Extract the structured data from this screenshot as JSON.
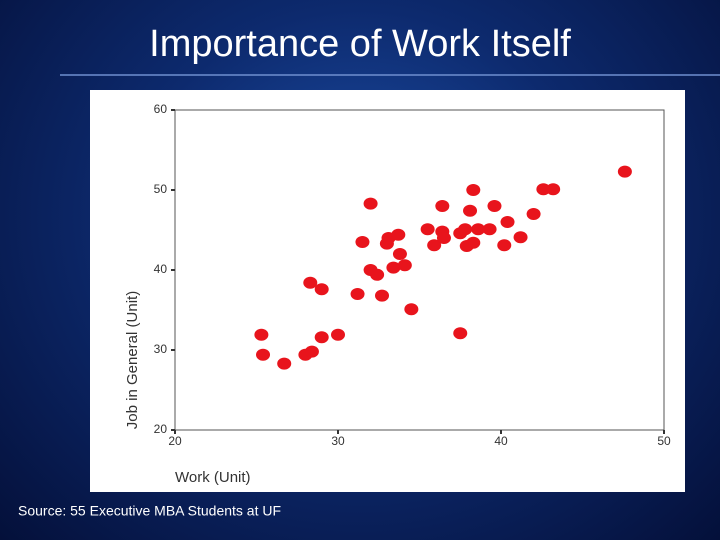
{
  "chart_data": {
    "type": "scatter",
    "title": "Importance of Work Itself",
    "x_label": "Work (Unit)",
    "y_label": "Job in General (Unit)",
    "source": "Source: 55 Executive MBA Students at UF",
    "color": "#e8141c",
    "xlim": [
      20,
      50
    ],
    "xticks": [
      20,
      30,
      40,
      50
    ],
    "ylim": [
      20,
      60
    ],
    "yticks": [
      20,
      30,
      40,
      50,
      60
    ],
    "x": [
      25.3,
      25.4,
      26.7,
      28.0,
      28.4,
      28.3,
      29.0,
      29.0,
      30.0,
      31.2,
      31.5,
      32.0,
      32.0,
      32.4,
      32.7,
      33.0,
      33.1,
      33.7,
      33.4,
      33.8,
      34.1,
      34.5,
      35.5,
      35.9,
      36.4,
      36.4,
      36.5,
      37.5,
      37.5,
      37.8,
      37.9,
      38.1,
      38.3,
      38.3,
      38.6,
      39.3,
      39.6,
      40.2,
      40.4,
      41.2,
      42.0,
      42.6,
      43.2,
      47.6
    ],
    "values": [
      31.9,
      29.4,
      28.3,
      29.4,
      29.8,
      38.4,
      37.6,
      31.6,
      31.9,
      37.0,
      43.5,
      48.3,
      40.0,
      39.4,
      36.8,
      43.3,
      44.0,
      44.4,
      40.3,
      42.0,
      40.6,
      35.1,
      45.1,
      43.1,
      48.0,
      44.8,
      44.0,
      32.1,
      44.6,
      45.1,
      43.0,
      47.4,
      50.0,
      43.4,
      45.1,
      45.1,
      48.0,
      43.1,
      46.0,
      44.1,
      47.0,
      50.1,
      50.1,
      52.3
    ]
  }
}
